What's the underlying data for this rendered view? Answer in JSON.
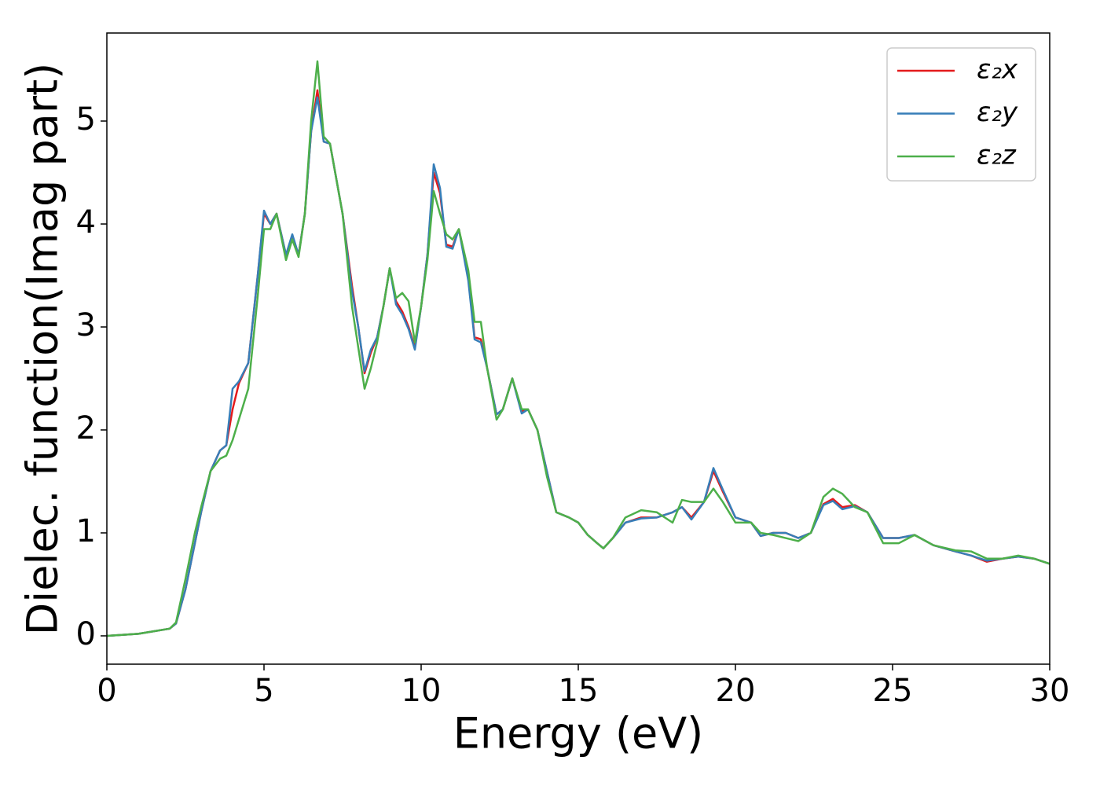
{
  "chart_data": {
    "type": "line",
    "xlabel": "Energy (eV)",
    "ylabel": "Dielec. function(Imag part)",
    "x": [
      0,
      1,
      2,
      2.2,
      2.5,
      2.8,
      3.0,
      3.3,
      3.6,
      3.8,
      4.0,
      4.2,
      4.5,
      4.8,
      5.0,
      5.2,
      5.4,
      5.7,
      5.9,
      6.1,
      6.3,
      6.5,
      6.7,
      6.9,
      7.1,
      7.5,
      7.8,
      8.0,
      8.2,
      8.4,
      8.6,
      8.8,
      9.0,
      9.2,
      9.4,
      9.6,
      9.8,
      10.0,
      10.2,
      10.4,
      10.6,
      10.8,
      11.0,
      11.2,
      11.5,
      11.7,
      11.9,
      12.1,
      12.4,
      12.6,
      12.9,
      13.2,
      13.4,
      13.7,
      14.0,
      14.3,
      14.7,
      15.0,
      15.3,
      15.6,
      15.8,
      16.1,
      16.5,
      17.0,
      17.5,
      18.0,
      18.3,
      18.6,
      19.0,
      19.3,
      19.6,
      20.0,
      20.5,
      20.8,
      21.2,
      21.6,
      22.0,
      22.4,
      22.8,
      23.1,
      23.4,
      23.8,
      24.2,
      24.7,
      25.2,
      25.7,
      26.3,
      27.0,
      27.5,
      28.0,
      28.5,
      29.0,
      29.5,
      30.0
    ],
    "series": [
      {
        "name": "ε₂x",
        "color": "#e41a1c",
        "values": [
          0,
          0.02,
          0.07,
          0.12,
          0.45,
          0.9,
          1.2,
          1.6,
          1.8,
          1.85,
          2.2,
          2.45,
          2.65,
          3.5,
          4.1,
          4.0,
          4.1,
          3.7,
          3.88,
          3.7,
          4.1,
          4.9,
          5.3,
          4.8,
          4.78,
          4.1,
          3.4,
          3.0,
          2.55,
          2.75,
          2.9,
          3.2,
          3.57,
          3.25,
          3.15,
          3.0,
          2.8,
          3.2,
          3.7,
          4.5,
          4.3,
          3.8,
          3.78,
          3.95,
          3.5,
          2.9,
          2.88,
          2.6,
          2.15,
          2.2,
          2.5,
          2.18,
          2.2,
          2.0,
          1.6,
          1.2,
          1.15,
          1.1,
          0.98,
          0.9,
          0.85,
          0.95,
          1.1,
          1.15,
          1.15,
          1.2,
          1.25,
          1.15,
          1.3,
          1.6,
          1.4,
          1.15,
          1.1,
          0.97,
          1.0,
          1.0,
          0.95,
          1.0,
          1.28,
          1.33,
          1.25,
          1.27,
          1.2,
          0.95,
          0.95,
          0.98,
          0.88,
          0.82,
          0.78,
          0.72,
          0.75,
          0.77,
          0.75,
          0.7
        ]
      },
      {
        "name": "ε₂y",
        "color": "#377eb8",
        "values": [
          0,
          0.02,
          0.07,
          0.12,
          0.45,
          0.9,
          1.2,
          1.6,
          1.8,
          1.85,
          2.4,
          2.47,
          2.65,
          3.5,
          4.13,
          4.0,
          4.1,
          3.7,
          3.9,
          3.7,
          4.1,
          4.9,
          5.23,
          4.8,
          4.78,
          4.1,
          3.35,
          3.0,
          2.57,
          2.78,
          2.9,
          3.2,
          3.57,
          3.22,
          3.12,
          2.98,
          2.78,
          3.2,
          3.7,
          4.58,
          4.35,
          3.78,
          3.76,
          3.95,
          3.45,
          2.88,
          2.85,
          2.6,
          2.15,
          2.2,
          2.5,
          2.16,
          2.2,
          2.0,
          1.6,
          1.2,
          1.15,
          1.1,
          0.98,
          0.9,
          0.85,
          0.95,
          1.1,
          1.14,
          1.15,
          1.2,
          1.25,
          1.13,
          1.3,
          1.63,
          1.42,
          1.15,
          1.1,
          0.97,
          1.0,
          1.0,
          0.95,
          1.0,
          1.27,
          1.31,
          1.23,
          1.26,
          1.2,
          0.95,
          0.95,
          0.98,
          0.88,
          0.82,
          0.78,
          0.73,
          0.75,
          0.77,
          0.75,
          0.7
        ]
      },
      {
        "name": "ε₂z",
        "color": "#4daf4a",
        "values": [
          0,
          0.02,
          0.07,
          0.13,
          0.55,
          1.0,
          1.25,
          1.6,
          1.72,
          1.75,
          1.9,
          2.1,
          2.4,
          3.3,
          3.95,
          3.95,
          4.1,
          3.65,
          3.85,
          3.68,
          4.1,
          5.0,
          5.58,
          4.85,
          4.78,
          4.1,
          3.2,
          2.8,
          2.4,
          2.6,
          2.85,
          3.2,
          3.57,
          3.28,
          3.33,
          3.25,
          2.85,
          3.2,
          3.65,
          4.32,
          4.1,
          3.9,
          3.85,
          3.95,
          3.55,
          3.05,
          3.05,
          2.6,
          2.1,
          2.2,
          2.5,
          2.2,
          2.2,
          2.0,
          1.55,
          1.2,
          1.15,
          1.1,
          0.98,
          0.9,
          0.85,
          0.95,
          1.15,
          1.22,
          1.2,
          1.1,
          1.32,
          1.3,
          1.3,
          1.43,
          1.3,
          1.1,
          1.1,
          1.0,
          0.98,
          0.95,
          0.92,
          1.0,
          1.35,
          1.43,
          1.38,
          1.25,
          1.2,
          0.9,
          0.9,
          0.98,
          0.88,
          0.83,
          0.82,
          0.75,
          0.75,
          0.78,
          0.75,
          0.7
        ]
      }
    ],
    "xlim": [
      0,
      30
    ],
    "xticks": [
      0,
      5,
      10,
      15,
      20,
      25,
      30
    ],
    "ylim": [
      -0.275,
      5.855
    ],
    "yticks": [
      0,
      1,
      2,
      3,
      4,
      5
    ],
    "legend": "upper right"
  }
}
